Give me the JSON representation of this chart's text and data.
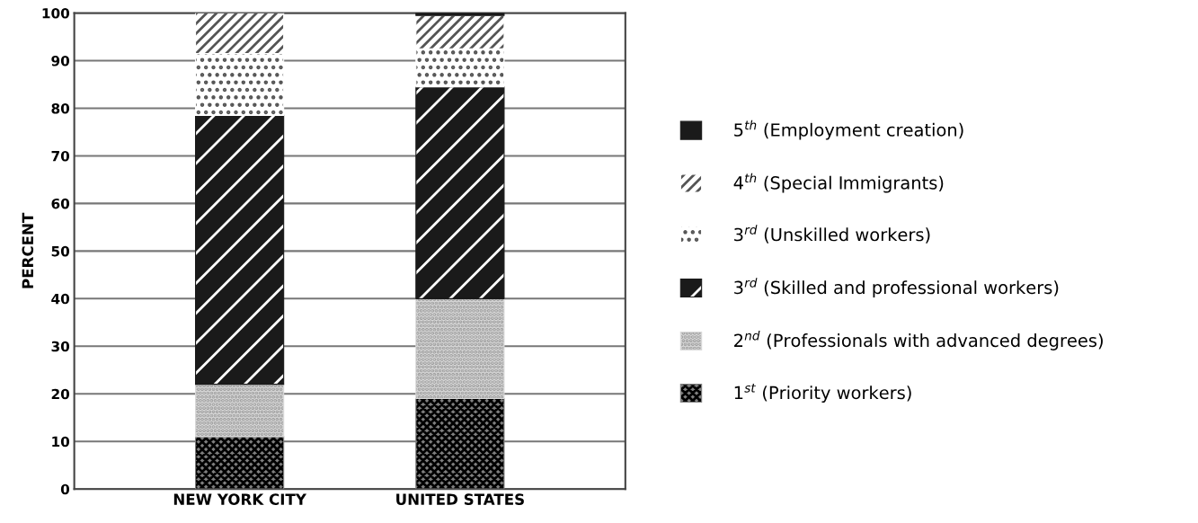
{
  "chart_data": {
    "type": "bar",
    "stacked": true,
    "ylabel": "PERCENT",
    "categories": [
      "NEW YORK CITY",
      "UNITED STATES"
    ],
    "series": [
      {
        "name": "1$^{st}$ (Priority workers)",
        "color": "#7f7f7f",
        "values": [
          11,
          19
        ]
      },
      {
        "name": "2$^{nd}$ (Professionals with advanced degrees)",
        "color": "#d9d9d9",
        "values": [
          11,
          21
        ]
      },
      {
        "name": "3$^{rd}$ (Skilled and professional workers)",
        "color": "#1a1a1a",
        "values": [
          56.5,
          44.5
        ]
      },
      {
        "name": "3$^{rd}$ (Unskilled workers)",
        "color": "#ffffff",
        "values": [
          13,
          8
        ]
      },
      {
        "name": "4$^{th}$ (Special Immigrants)",
        "color": "#ffffff",
        "values": [
          8.5,
          7
        ]
      },
      {
        "name": "5$^{th}$ (Employment creation)",
        "color": "#1a1a1a",
        "values": [
          0,
          0.5
        ]
      }
    ],
    "ylim": [
      0,
      100
    ],
    "yticks": [
      0,
      10,
      20,
      30,
      40,
      50,
      60,
      70,
      80,
      90,
      100
    ],
    "grid": "y",
    "legend": "right"
  }
}
